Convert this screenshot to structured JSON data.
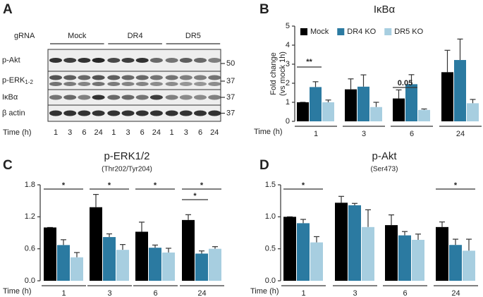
{
  "blot": {
    "panel": "A",
    "gRNA_label": "gRNA",
    "groups": [
      "Mock",
      "DR4",
      "DR5"
    ],
    "rows": [
      {
        "label": "p-Akt",
        "mw": "50"
      },
      {
        "label": "p-ERK",
        "sub": "1-2",
        "mw": "37"
      },
      {
        "label": "IκBα",
        "mw": "37"
      },
      {
        "label": "β actin",
        "mw": "37"
      }
    ],
    "time_label": "Time (h)",
    "times": [
      "1",
      "3",
      "6",
      "24",
      "1",
      "3",
      "6",
      "24",
      "1",
      "3",
      "6",
      "24"
    ]
  },
  "chart_data": [
    {
      "type": "bar",
      "panel": "B",
      "title": "IκBα",
      "ylabel": [
        "Fold change",
        "(vs mock 1h)"
      ],
      "xlabel": "Time (h)",
      "categories": [
        "1",
        "3",
        "6",
        "24"
      ],
      "ylim": [
        0,
        5
      ],
      "yticks": [
        0,
        1,
        2,
        3,
        4,
        5
      ],
      "legend": "top-left",
      "series": [
        {
          "name": "Mock",
          "color": "#000000",
          "values": [
            1.0,
            1.68,
            1.2,
            2.58
          ],
          "errors": [
            0,
            0.55,
            0.45,
            1.15
          ]
        },
        {
          "name": "DR4 KO",
          "color": "#2b7aa1",
          "values": [
            1.8,
            1.82,
            1.95,
            3.22
          ],
          "errors": [
            0.28,
            0.62,
            0.5,
            1.1
          ]
        },
        {
          "name": "DR5 KO",
          "color": "#a7cee0",
          "values": [
            1.0,
            0.75,
            0.6,
            0.95
          ],
          "errors": [
            0.12,
            0.25,
            0.05,
            0.2
          ]
        }
      ],
      "annotations": [
        "**",
        "0.05"
      ]
    },
    {
      "type": "bar",
      "panel": "C",
      "title": "p-ERK1/2",
      "subtitle": "(Thr202/Tyr204)",
      "xlabel": "Time (h)",
      "categories": [
        "1",
        "3",
        "6",
        "24"
      ],
      "ylim": [
        0,
        1.8
      ],
      "yticks": [
        {
          "value": 0,
          "label": "0.0"
        },
        0.6,
        1.2,
        1.8
      ],
      "series": [
        {
          "name": "Mock",
          "color": "#000000",
          "values": [
            1.0,
            1.38,
            0.92,
            1.14
          ],
          "errors": [
            0,
            0.24,
            0.18,
            0.1
          ]
        },
        {
          "name": "DR4 KO",
          "color": "#2b7aa1",
          "values": [
            0.67,
            0.82,
            0.62,
            0.51
          ],
          "errors": [
            0.1,
            0.06,
            0.05,
            0.05
          ]
        },
        {
          "name": "DR5 KO",
          "color": "#a7cee0",
          "values": [
            0.44,
            0.58,
            0.53,
            0.6
          ],
          "errors": [
            0.09,
            0.1,
            0.08,
            0.04
          ]
        }
      ],
      "annotations": [
        "*",
        "*",
        "*",
        "*",
        "*"
      ]
    },
    {
      "type": "bar",
      "panel": "D",
      "title": "p-Akt",
      "subtitle": "(Ser473)",
      "xlabel": "Time (h)",
      "categories": [
        "1",
        "3",
        "6",
        "24"
      ],
      "ylim": [
        0,
        1.5
      ],
      "yticks": [
        {
          "value": 0,
          "label": "0.0"
        },
        0.5,
        {
          "value": 1,
          "label": "1.0"
        },
        1.5
      ],
      "series": [
        {
          "name": "Mock",
          "color": "#000000",
          "values": [
            1.0,
            1.22,
            0.87,
            0.84
          ],
          "errors": [
            0,
            0.1,
            0.16,
            0.08
          ]
        },
        {
          "name": "DR4 KO",
          "color": "#2b7aa1",
          "values": [
            0.9,
            1.18,
            0.71,
            0.56
          ],
          "errors": [
            0.06,
            0.03,
            0.06,
            0.09
          ]
        },
        {
          "name": "DR5 KO",
          "color": "#a7cee0",
          "values": [
            0.6,
            0.84,
            0.64,
            0.47
          ],
          "errors": [
            0.09,
            0.27,
            0.09,
            0.18
          ]
        }
      ],
      "annotations": [
        "*",
        "*"
      ]
    }
  ]
}
